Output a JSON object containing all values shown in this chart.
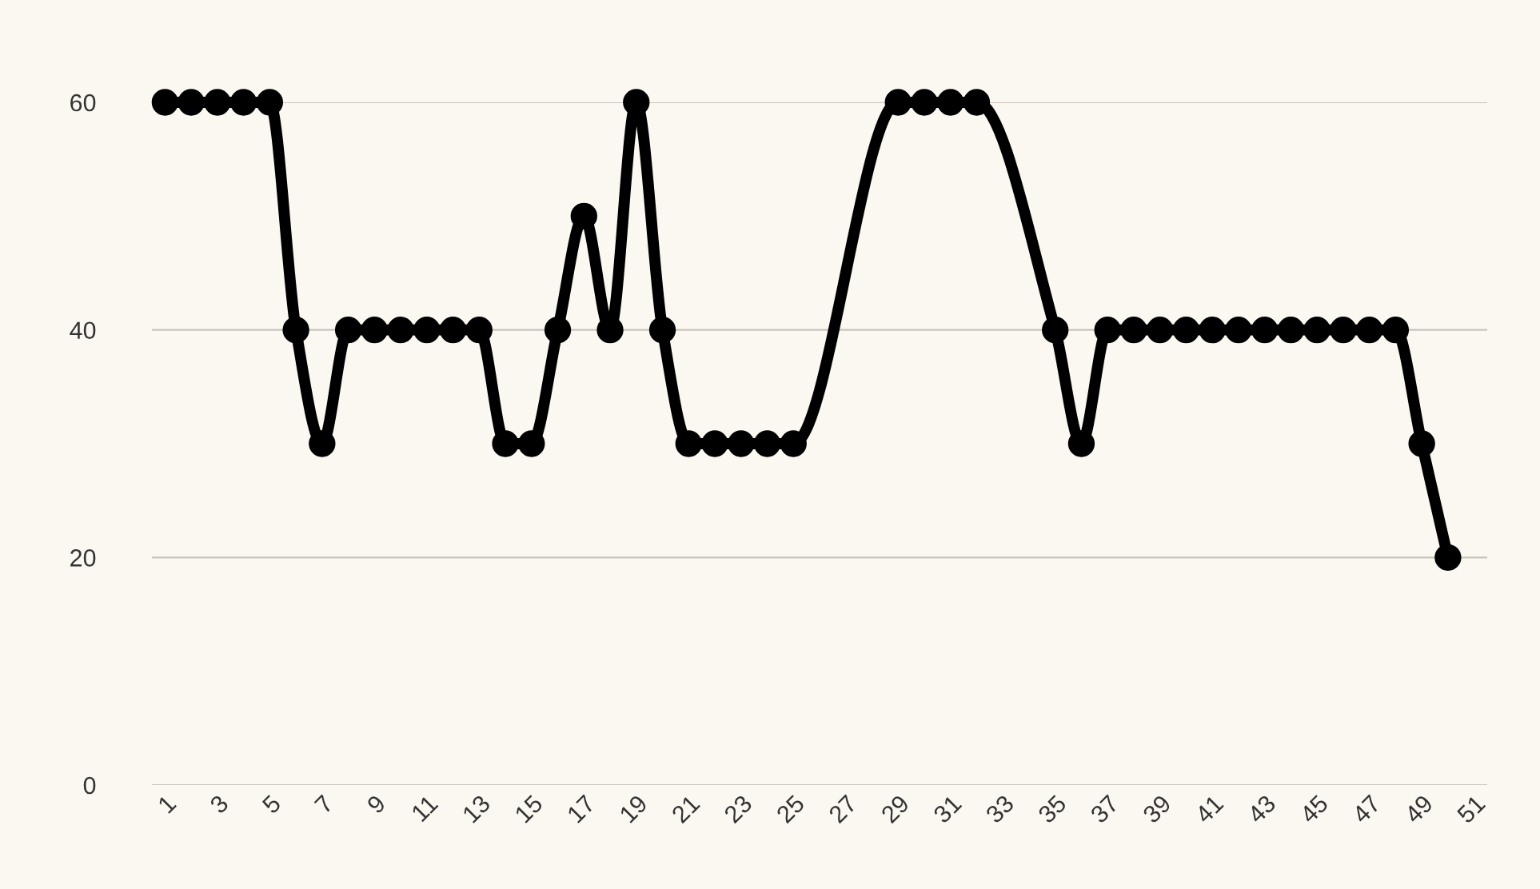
{
  "chart_data": {
    "type": "line",
    "categories": [
      "1",
      null,
      "3",
      null,
      "5",
      null,
      "7",
      null,
      "9",
      null,
      "11",
      null,
      "13",
      null,
      "15",
      null,
      "17",
      null,
      "19",
      null,
      "21",
      null,
      "23",
      null,
      "25",
      null,
      "27",
      null,
      "29",
      null,
      "31",
      null,
      "33",
      null,
      "35",
      null,
      "37",
      null,
      "39",
      null,
      "41",
      null,
      "43",
      null,
      "45",
      null,
      "47",
      null,
      "49",
      null,
      "51"
    ],
    "series": [
      {
        "color": "#000000",
        "values": [
          60,
          60,
          60,
          60,
          60,
          40,
          30,
          40,
          40,
          40,
          40,
          40,
          40,
          30,
          30,
          40,
          50,
          40,
          60,
          40,
          30,
          30,
          30,
          30,
          30,
          null,
          null,
          null,
          60,
          60,
          60,
          60,
          null,
          null,
          40,
          30,
          40,
          40,
          40,
          40,
          40,
          40,
          40,
          40,
          40,
          40,
          40,
          40,
          30,
          20,
          null
        ]
      }
    ],
    "ylim": [
      0,
      60
    ],
    "yticks": [
      0,
      20,
      40,
      60
    ],
    "grid": "y",
    "marker": "circle",
    "line_style": "solid",
    "legend": false
  }
}
